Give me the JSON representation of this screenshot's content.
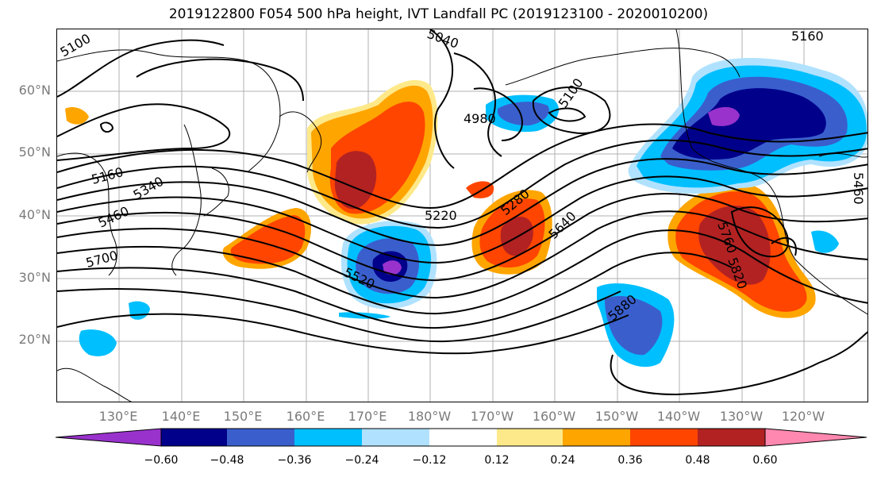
{
  "title": "2019122800 F054 500 hPa height, IVT Landfall PC (2019123100 - 2020010200)",
  "lat_labels": [
    "60°N",
    "50°N",
    "40°N",
    "30°N",
    "20°N"
  ],
  "lon_labels": [
    "130°E",
    "140°E",
    "150°E",
    "160°E",
    "170°E",
    "180°W",
    "170°W",
    "160°W",
    "150°W",
    "140°W",
    "130°W",
    "120°W"
  ],
  "contour_labels": [
    "5100",
    "5040",
    "5160",
    "5160",
    "5340",
    "5460",
    "5700",
    "4980",
    "5100",
    "5220",
    "5280",
    "5640",
    "5520",
    "5880",
    "5760",
    "5820",
    "5460"
  ],
  "colorbar": {
    "ticks": [
      "−0.60",
      "−0.48",
      "−0.36",
      "−0.24",
      "−0.12",
      "0.12",
      "0.24",
      "0.36",
      "0.48",
      "0.60"
    ],
    "colors": [
      "#9932cc",
      "#00008b",
      "#3a5fcd",
      "#00bfff",
      "#b0e2ff",
      "#ffffff",
      "#fee98a",
      "#ffa500",
      "#ff4500",
      "#b22222",
      "#ff88b0",
      "#ff88b0"
    ]
  },
  "colors": {
    "neg_strong": "#9932cc",
    "neg_dark": "#00008b",
    "neg_mid": "#3a5fcd",
    "neg_light": "#00bfff",
    "neg_pale": "#b0e2ff",
    "pos_pale": "#fee98a",
    "pos_light": "#ffa500",
    "pos_mid": "#ff4500",
    "pos_strong": "#b22222"
  }
}
